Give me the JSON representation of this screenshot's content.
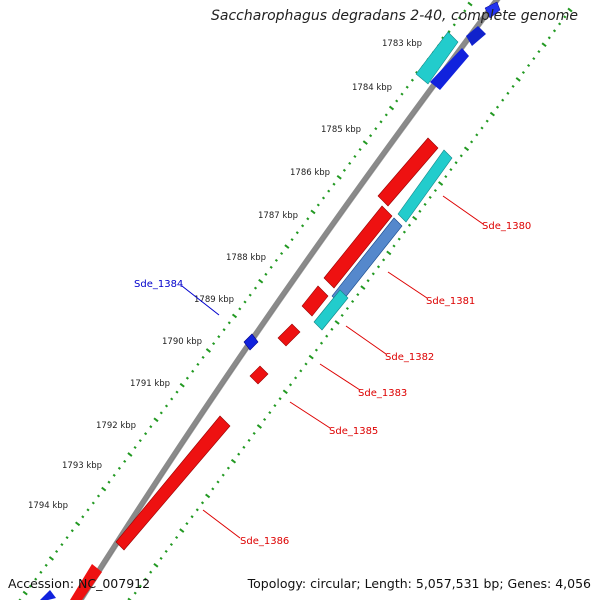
{
  "title": "Saccharophagus degradans 2-40, complete genome",
  "footer": {
    "accession": "Accession: NC_007912",
    "summary": "Topology: circular; Length: 5,057,531 bp; Genes: 4,056"
  },
  "colors": {
    "forward_gene": "#ee1111",
    "reverse_gene": "#1111dd",
    "cds_teal": "#22cccc",
    "backbone": "#888888",
    "scale_dots": "#229922",
    "gene_label_red": "#dd0000",
    "gene_label_blue": "#0000cc"
  },
  "kbp_ticks": [
    "1783 kbp",
    "1784 kbp",
    "1785 kbp",
    "1786 kbp",
    "1787 kbp",
    "1788 kbp",
    "1789 kbp",
    "1790 kbp",
    "1791 kbp",
    "1792 kbp",
    "1793 kbp",
    "1794 kbp"
  ],
  "gene_labels": [
    {
      "name": "Sde_1380",
      "color": "red"
    },
    {
      "name": "Sde_1381",
      "color": "red"
    },
    {
      "name": "Sde_1382",
      "color": "red"
    },
    {
      "name": "Sde_1383",
      "color": "red"
    },
    {
      "name": "Sde_1385",
      "color": "red"
    },
    {
      "name": "Sde_1386",
      "color": "red"
    },
    {
      "name": "Sde_1384",
      "color": "blue"
    }
  ]
}
